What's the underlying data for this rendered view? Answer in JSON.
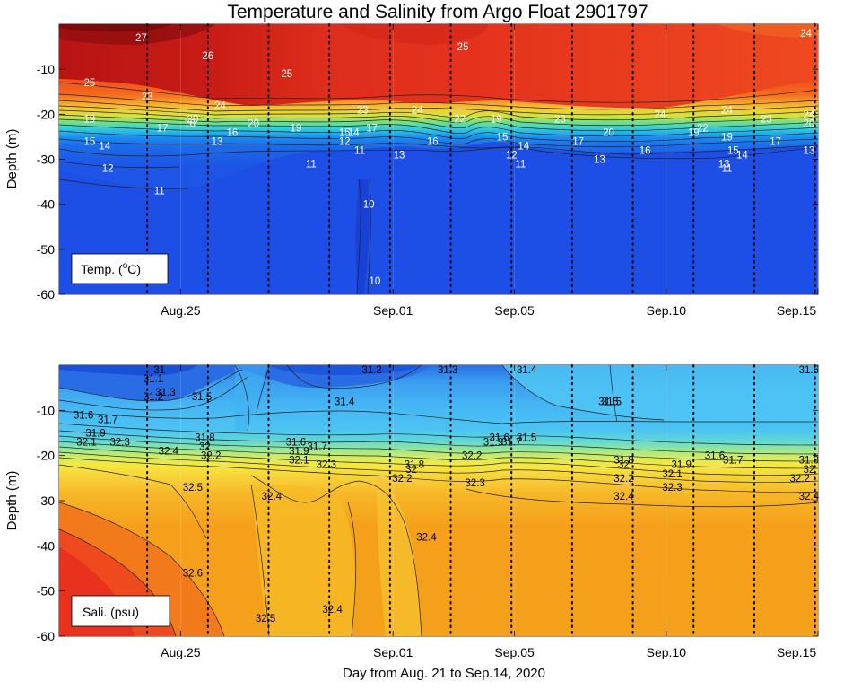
{
  "title": "Temperature and Salinity from Argo Float 2901797",
  "xlabel": "Day from Aug. 21 to Sep.14, 2020",
  "chart_data": [
    {
      "type": "heatmap",
      "variable": "temperature",
      "legend_label": "Temp. (",
      "legend_sup": "o",
      "legend_unit": "C)",
      "ylabel": "Depth (m)",
      "ylim": [
        -60,
        0
      ],
      "yticks": [
        -10,
        -20,
        -30,
        -40,
        -50,
        -60
      ],
      "xlim": [
        "Aug.21",
        "Sep.15"
      ],
      "xticks": [
        "Aug.25",
        "Sep.01",
        "Sep.05",
        "Sep.10",
        "Sep.15"
      ],
      "colors": {
        "warmest": "#9a0f0f",
        "cold": "#1f50e6"
      },
      "profile_days": [
        2.9,
        4.9,
        6.9,
        8.9,
        10.9,
        12.9,
        14.9,
        16.9,
        18.9,
        20.9,
        22.9,
        24.9
      ],
      "contour_labels": [
        {
          "text": "27",
          "day": 2.7,
          "depth": -3
        },
        {
          "text": "26",
          "day": 4.9,
          "depth": -7
        },
        {
          "text": "25",
          "day": 1.0,
          "depth": -13
        },
        {
          "text": "25",
          "day": 7.5,
          "depth": -11
        },
        {
          "text": "25",
          "day": 13.3,
          "depth": -5
        },
        {
          "text": "24",
          "day": 24.6,
          "depth": -2
        },
        {
          "text": "24",
          "day": 5.3,
          "depth": -18
        },
        {
          "text": "23",
          "day": 2.9,
          "depth": -16
        },
        {
          "text": "23",
          "day": 10.0,
          "depth": -19
        },
        {
          "text": "24",
          "day": 11.8,
          "depth": -19
        },
        {
          "text": "24",
          "day": 19.8,
          "depth": -20
        },
        {
          "text": "24",
          "day": 22.0,
          "depth": -19
        },
        {
          "text": "23",
          "day": 23.3,
          "depth": -21
        },
        {
          "text": "23",
          "day": 16.5,
          "depth": -21
        },
        {
          "text": "24",
          "day": 24.7,
          "depth": -20
        },
        {
          "text": "20",
          "day": 24.7,
          "depth": -22
        },
        {
          "text": "19",
          "day": 1.0,
          "depth": -21
        },
        {
          "text": "17",
          "day": 3.4,
          "depth": -23
        },
        {
          "text": "20",
          "day": 4.4,
          "depth": -21
        },
        {
          "text": "16",
          "day": 4.3,
          "depth": -22
        },
        {
          "text": "15",
          "day": 1.0,
          "depth": -26
        },
        {
          "text": "14",
          "day": 1.5,
          "depth": -27
        },
        {
          "text": "13",
          "day": 5.2,
          "depth": -26
        },
        {
          "text": "16",
          "day": 5.7,
          "depth": -24
        },
        {
          "text": "20",
          "day": 6.4,
          "depth": -22
        },
        {
          "text": "19",
          "day": 7.8,
          "depth": -23
        },
        {
          "text": "15",
          "day": 9.4,
          "depth": -24
        },
        {
          "text": "14",
          "day": 9.7,
          "depth": -24
        },
        {
          "text": "17",
          "day": 10.3,
          "depth": -23
        },
        {
          "text": "12",
          "day": 9.4,
          "depth": -26
        },
        {
          "text": "11",
          "day": 9.9,
          "depth": -28
        },
        {
          "text": "11",
          "day": 8.3,
          "depth": -31
        },
        {
          "text": "13",
          "day": 11.2,
          "depth": -29
        },
        {
          "text": "16",
          "day": 12.3,
          "depth": -26
        },
        {
          "text": "22",
          "day": 13.2,
          "depth": -21
        },
        {
          "text": "19",
          "day": 14.4,
          "depth": -21
        },
        {
          "text": "15",
          "day": 14.6,
          "depth": -25
        },
        {
          "text": "14",
          "day": 15.3,
          "depth": -27
        },
        {
          "text": "12",
          "day": 14.9,
          "depth": -29
        },
        {
          "text": "11",
          "day": 15.2,
          "depth": -31
        },
        {
          "text": "17",
          "day": 17.1,
          "depth": -26
        },
        {
          "text": "20",
          "day": 18.1,
          "depth": -24
        },
        {
          "text": "13",
          "day": 17.8,
          "depth": -30
        },
        {
          "text": "16",
          "day": 19.3,
          "depth": -28
        },
        {
          "text": "19",
          "day": 20.9,
          "depth": -24
        },
        {
          "text": "22",
          "day": 21.2,
          "depth": -23
        },
        {
          "text": "19",
          "day": 22.0,
          "depth": -25
        },
        {
          "text": "17",
          "day": 23.6,
          "depth": -26
        },
        {
          "text": "15",
          "day": 22.2,
          "depth": -28
        },
        {
          "text": "14",
          "day": 22.5,
          "depth": -29
        },
        {
          "text": "13",
          "day": 21.9,
          "depth": -31
        },
        {
          "text": "11",
          "day": 22.0,
          "depth": -32
        },
        {
          "text": "13",
          "day": 24.7,
          "depth": -28
        },
        {
          "text": "12",
          "day": 1.6,
          "depth": -32
        },
        {
          "text": "11",
          "day": 3.3,
          "depth": -37
        },
        {
          "text": "10",
          "day": 10.2,
          "depth": -40
        },
        {
          "text": "10",
          "day": 10.4,
          "depth": -57
        }
      ]
    },
    {
      "type": "heatmap",
      "variable": "salinity",
      "legend_label": "Sali. (psu)",
      "ylabel": "Depth (m)",
      "ylim": [
        -60,
        0
      ],
      "yticks": [
        -10,
        -20,
        -30,
        -40,
        -50,
        -60
      ],
      "xlim": [
        "Aug.21",
        "Sep.15"
      ],
      "xticks": [
        "Aug.25",
        "Sep.01",
        "Sep.05",
        "Sep.10",
        "Sep.15"
      ],
      "colors": {
        "freshest": "#1b4fd8",
        "saltiest": "#e8321e"
      },
      "profile_days": [
        2.9,
        4.9,
        6.9,
        8.9,
        10.9,
        12.9,
        14.9,
        16.9,
        18.9,
        20.9,
        22.9,
        24.9
      ],
      "contour_labels": [
        {
          "text": "31",
          "day": 3.3,
          "depth": -1
        },
        {
          "text": "31.1",
          "day": 3.1,
          "depth": -3
        },
        {
          "text": "31.2",
          "day": 10.3,
          "depth": -1
        },
        {
          "text": "31.3",
          "day": 12.8,
          "depth": -1
        },
        {
          "text": "31.4",
          "day": 15.4,
          "depth": -1
        },
        {
          "text": "31.5",
          "day": 24.7,
          "depth": -1
        },
        {
          "text": "31.3",
          "day": 3.5,
          "depth": -6
        },
        {
          "text": "31.2",
          "day": 3.1,
          "depth": -7
        },
        {
          "text": "31.5",
          "day": 4.7,
          "depth": -7
        },
        {
          "text": "31.4",
          "day": 9.4,
          "depth": -8
        },
        {
          "text": "31.5",
          "day": 18.2,
          "depth": -8
        },
        {
          "text": "31.6",
          "day": 0.8,
          "depth": -11
        },
        {
          "text": "31.7",
          "day": 1.6,
          "depth": -12
        },
        {
          "text": "31.9",
          "day": 1.2,
          "depth": -15
        },
        {
          "text": "32.1",
          "day": 0.9,
          "depth": -17
        },
        {
          "text": "32.3",
          "day": 2.0,
          "depth": -17
        },
        {
          "text": "32.4",
          "day": 3.6,
          "depth": -19
        },
        {
          "text": "31.8",
          "day": 4.8,
          "depth": -16
        },
        {
          "text": "32",
          "day": 4.8,
          "depth": -18
        },
        {
          "text": "32.2",
          "day": 5.0,
          "depth": -20
        },
        {
          "text": "31.6",
          "day": 7.8,
          "depth": -17
        },
        {
          "text": "31.7",
          "day": 8.5,
          "depth": -18
        },
        {
          "text": "31.9",
          "day": 7.9,
          "depth": -19
        },
        {
          "text": "32.1",
          "day": 7.9,
          "depth": -21
        },
        {
          "text": "32.3",
          "day": 8.8,
          "depth": -22
        },
        {
          "text": "31.8",
          "day": 11.7,
          "depth": -22
        },
        {
          "text": "32",
          "day": 11.6,
          "depth": -23
        },
        {
          "text": "32.2",
          "day": 11.3,
          "depth": -25
        },
        {
          "text": "32.3",
          "day": 13.7,
          "depth": -26
        },
        {
          "text": "32.2",
          "day": 13.6,
          "depth": -20
        },
        {
          "text": "31.9",
          "day": 14.3,
          "depth": -17
        },
        {
          "text": "31.7",
          "day": 14.9,
          "depth": -17
        },
        {
          "text": "31.5",
          "day": 15.4,
          "depth": -16
        },
        {
          "text": "31.6",
          "day": 14.5,
          "depth": -16
        },
        {
          "text": "31.8",
          "day": 18.6,
          "depth": -21
        },
        {
          "text": "32",
          "day": 18.6,
          "depth": -22
        },
        {
          "text": "32.2",
          "day": 18.6,
          "depth": -25
        },
        {
          "text": "32.4",
          "day": 18.6,
          "depth": -29
        },
        {
          "text": "32.3",
          "day": 20.2,
          "depth": -27
        },
        {
          "text": "32.1",
          "day": 20.2,
          "depth": -24
        },
        {
          "text": "31.9",
          "day": 20.5,
          "depth": -22
        },
        {
          "text": "31.6",
          "day": 21.6,
          "depth": -20
        },
        {
          "text": "31.7",
          "day": 22.2,
          "depth": -21
        },
        {
          "text": "31.8",
          "day": 24.7,
          "depth": -21
        },
        {
          "text": "32",
          "day": 24.7,
          "depth": -23
        },
        {
          "text": "32.2",
          "day": 24.4,
          "depth": -25
        },
        {
          "text": "32.4",
          "day": 24.7,
          "depth": -29
        },
        {
          "text": "32.5",
          "day": 4.4,
          "depth": -27
        },
        {
          "text": "32.4",
          "day": 7.0,
          "depth": -29
        },
        {
          "text": "32.4",
          "day": 12.1,
          "depth": -38
        },
        {
          "text": "32.6",
          "day": 4.4,
          "depth": -46
        },
        {
          "text": "32.4",
          "day": 9.0,
          "depth": -54
        },
        {
          "text": "32.5",
          "day": 6.8,
          "depth": -56
        },
        {
          "text": "31.5",
          "day": 18.1,
          "depth": -8
        }
      ]
    }
  ]
}
